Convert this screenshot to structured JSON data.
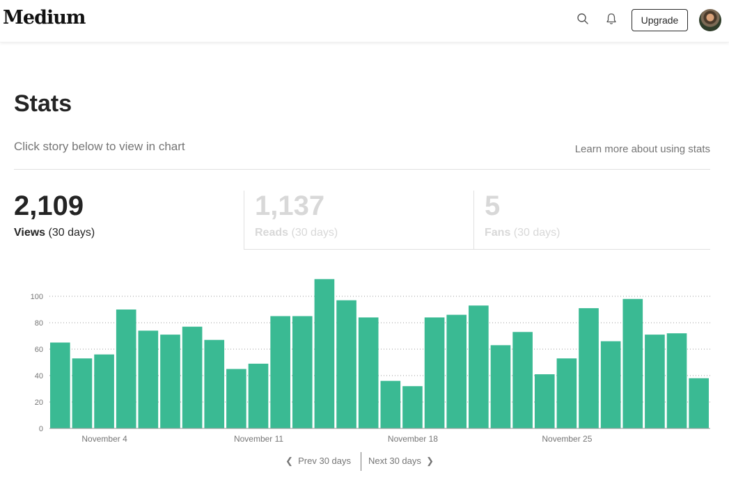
{
  "header": {
    "logo": "Medium",
    "upgrade_label": "Upgrade",
    "icons": [
      "search-icon",
      "bell-icon"
    ]
  },
  "page": {
    "title": "Stats",
    "subtitle": "Click story below to view in chart",
    "learn_more": "Learn more about using stats"
  },
  "stats": {
    "views": {
      "value": "2,109",
      "label": "Views",
      "period": "(30 days)"
    },
    "reads": {
      "value": "1,137",
      "label": "Reads",
      "period": "(30 days)"
    },
    "fans": {
      "value": "5",
      "label": "Fans",
      "period": "(30 days)"
    }
  },
  "colors": {
    "bar": "#3aba93",
    "accent": "#242424",
    "muted": "#d8d8d8"
  },
  "chart_data": {
    "type": "bar",
    "title": "",
    "ylim": [
      0,
      120
    ],
    "y_ticks": [
      0,
      20,
      40,
      60,
      80,
      100
    ],
    "values": [
      65,
      53,
      56,
      90,
      74,
      71,
      77,
      67,
      45,
      49,
      85,
      85,
      113,
      97,
      84,
      36,
      32,
      84,
      86,
      93,
      63,
      73,
      41,
      53,
      91,
      66,
      98,
      71,
      72,
      38
    ],
    "x_tick_labels": [
      {
        "index": 2.5,
        "label": "November 4"
      },
      {
        "index": 9.5,
        "label": "November 11"
      },
      {
        "index": 16.5,
        "label": "November 18"
      },
      {
        "index": 23.5,
        "label": "November 25"
      }
    ],
    "grid": true
  },
  "pager": {
    "prev_label": "Prev 30 days",
    "next_label": "Next 30 days"
  }
}
